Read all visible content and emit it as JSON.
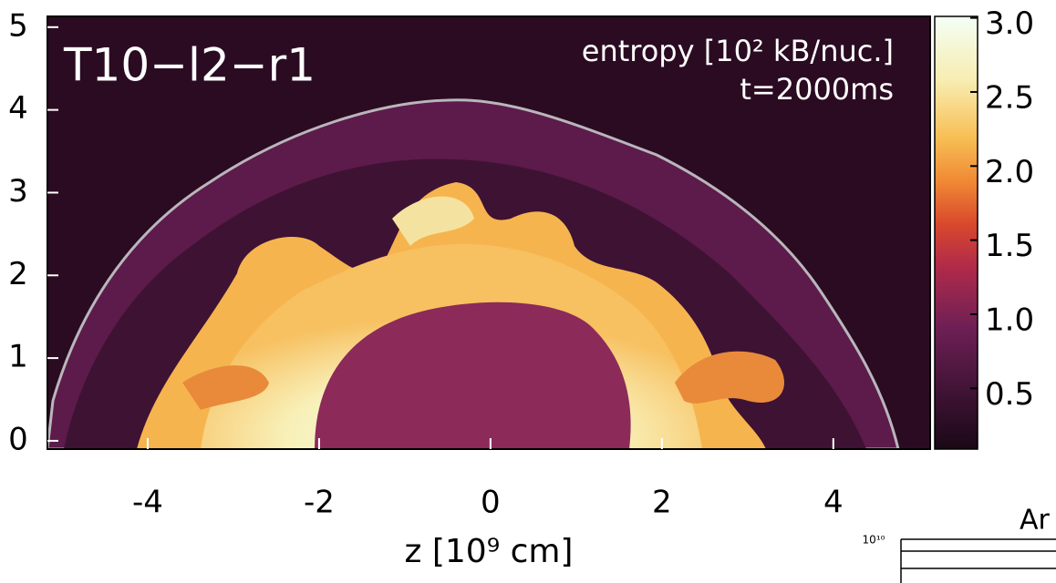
{
  "chart_data": {
    "type": "heatmap",
    "title": "T10−l2−r1",
    "annotations": [
      "entropy [10² kB/nuc.]",
      "t=2000ms"
    ],
    "x_label": "z [10⁹ cm]",
    "xlim": [
      -5.17,
      5.13
    ],
    "xticks": [
      -4,
      -2,
      0,
      2,
      4
    ],
    "ylim": [
      -0.1,
      5.13
    ],
    "yticks": [
      0,
      1,
      2,
      3,
      4,
      5
    ],
    "colorbar": {
      "lim": [
        0.09,
        3.01
      ],
      "ticks": [
        {
          "value": 0.5,
          "label": "0.5"
        },
        {
          "value": 1,
          "label": "1.0"
        },
        {
          "value": 1.5,
          "label": "1.5"
        },
        {
          "value": 2,
          "label": "2.0"
        },
        {
          "value": 2.5,
          "label": "2.5"
        },
        {
          "value": 3,
          "label": "3.0"
        }
      ]
    }
  },
  "neighbor_panel": {
    "title": "Ar",
    "ytick": "10¹⁰"
  }
}
